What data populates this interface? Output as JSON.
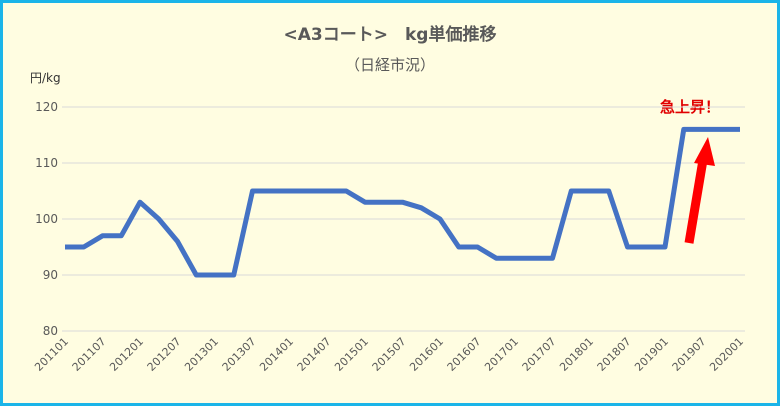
{
  "chart_data": {
    "type": "line",
    "title": "<A3コート>　kg単価推移",
    "subtitle": "（日経市況）",
    "ylabel": "円/kg",
    "annotation": "急上昇！",
    "categories": [
      "201101",
      null,
      "201107",
      null,
      "201201",
      null,
      "201207",
      null,
      "201301",
      null,
      "201307",
      null,
      "201401",
      null,
      "201407",
      null,
      "201501",
      null,
      "201507",
      null,
      "201601",
      null,
      "201607",
      null,
      "201701",
      null,
      "201707",
      null,
      "201801",
      null,
      "201807",
      null,
      "201901",
      null,
      "201907",
      null,
      "202001"
    ],
    "series": [
      {
        "name": "kg単価",
        "color": "#4472c4",
        "values": [
          95,
          95,
          97,
          97,
          103,
          100,
          96,
          90,
          90,
          90,
          105,
          105,
          105,
          105,
          105,
          105,
          103,
          103,
          103,
          102,
          100,
          95,
          95,
          93,
          93,
          93,
          93,
          105,
          105,
          105,
          95,
          95,
          95,
          116,
          116,
          116,
          116
        ]
      }
    ],
    "ylim": [
      80,
      120
    ],
    "yticks": [
      80,
      90,
      100,
      110,
      120
    ],
    "grid": true
  }
}
